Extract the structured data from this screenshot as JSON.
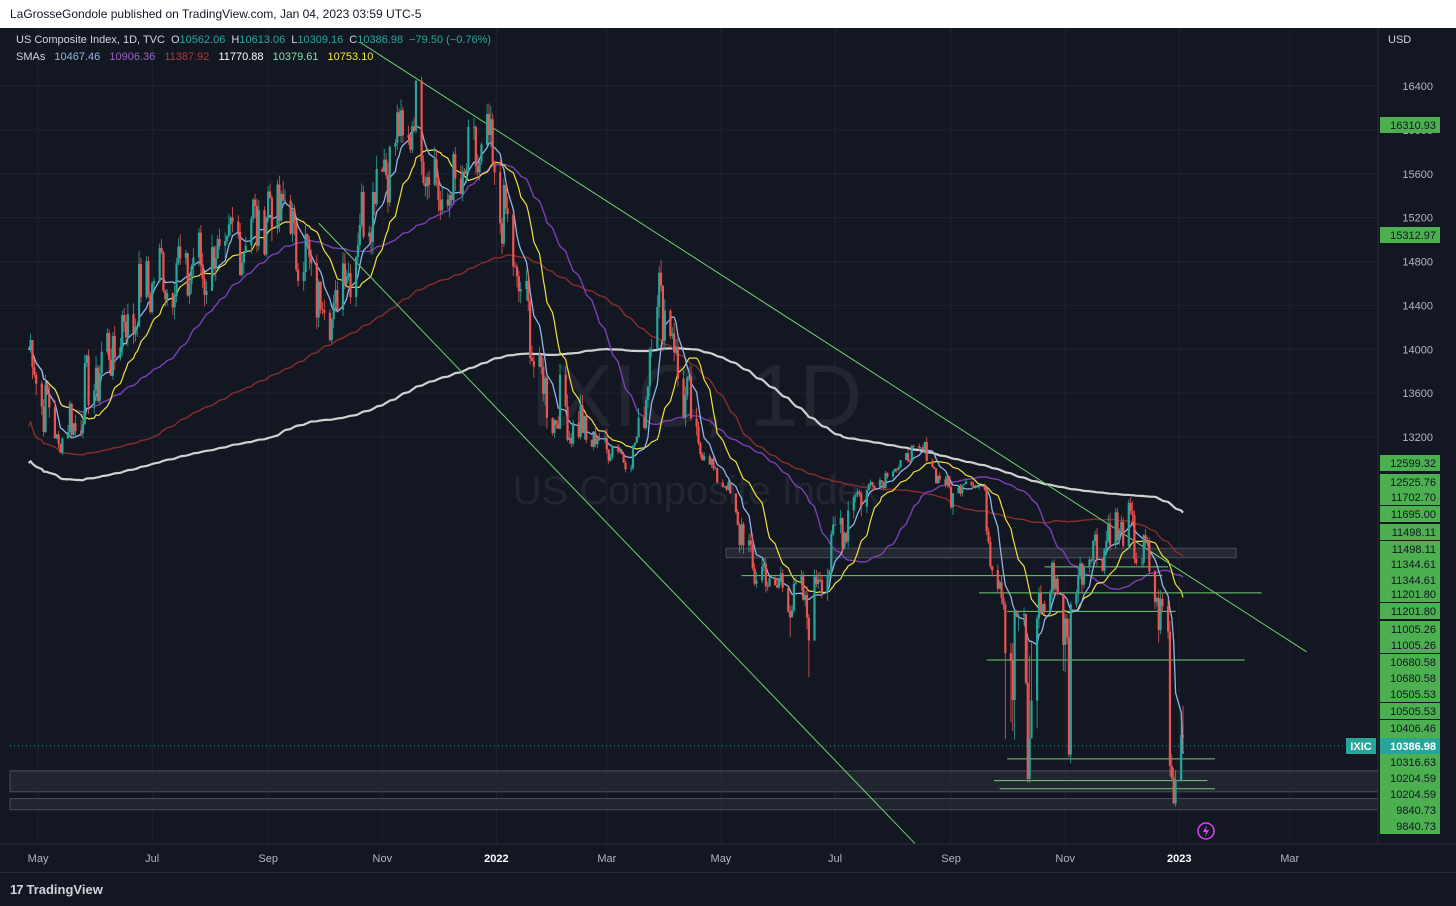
{
  "header": {
    "publisher": "LaGrosseGondole published on TradingView.com, Jan 04, 2023 03:59 UTC-5"
  },
  "legend": {
    "symbol_line": "US Composite Index, 1D, TVC",
    "open_label": "O",
    "open": "10562.06",
    "high_label": "H",
    "high": "10613.06",
    "low_label": "L",
    "low": "10309.16",
    "close_label": "C",
    "close": "10386.98",
    "change": "−79.50 (−0.76%)",
    "sma_label": "SMAs",
    "smas": [
      {
        "value": "10467.46",
        "color": "#8fb5e8"
      },
      {
        "value": "10906.36",
        "color": "#9c5fc4"
      },
      {
        "value": "11387.92",
        "color": "#a83d3d"
      },
      {
        "value": "11770.88",
        "color": "#ffffff"
      },
      {
        "value": "10379.61",
        "color": "#82e0aa"
      },
      {
        "value": "10753.10",
        "color": "#f5e642"
      }
    ]
  },
  "currency": "USD",
  "watermark": {
    "symbol": "IXIC, 1D",
    "name": "US Composite Index"
  },
  "footer": {
    "brand": "TradingView"
  },
  "colors": {
    "background": "#131722",
    "up_candle": "#26a69a",
    "down_candle": "#ef5350",
    "trendline": "#6fcf6f",
    "axis_label_green": "#4caf50",
    "price_tag": "#26a69a",
    "sma_white": "#d0d0d0",
    "sma_red": "#8b2c2c",
    "sma_purple": "#7b3fb5",
    "sma_yellow": "#f0e040",
    "sma_blue": "#8fb5e8"
  },
  "chart_data": {
    "type": "line",
    "title": "US Composite Index, 1D, TVC",
    "symbol": "IXIC",
    "x_ticks": [
      "May",
      "Jul",
      "Sep",
      "Nov",
      "2022",
      "Mar",
      "May",
      "Jul",
      "Sep",
      "Nov",
      "2023",
      "Mar"
    ],
    "y_ticks": [
      16400,
      16000,
      15600,
      15200,
      14800,
      14400,
      14000,
      13600,
      13200
    ],
    "ylim": [
      9750,
      16600
    ],
    "y_scale": "log",
    "close_price": "10386.98",
    "close_tag": "IXIC",
    "x": [
      "2021-04-26",
      "2021-05-12",
      "2021-06-01",
      "2021-07-01",
      "2021-08-02",
      "2021-09-07",
      "2021-10-04",
      "2021-11-01",
      "2021-11-19",
      "2021-12-03",
      "2021-12-27",
      "2022-01-27",
      "2022-02-24",
      "2022-03-14",
      "2022-03-29",
      "2022-05-11",
      "2022-05-20",
      "2022-06-16",
      "2022-07-08",
      "2022-08-16",
      "2022-09-01",
      "2022-09-12",
      "2022-09-30",
      "2022-10-13",
      "2022-10-25",
      "2022-11-03",
      "2022-11-10",
      "2022-12-01",
      "2022-12-13",
      "2022-12-28",
      "2023-01-03"
    ],
    "series": [
      {
        "values": [
          14000,
          13100,
          13750,
          14650,
          14780,
          15350,
          14300,
          15700,
          16100,
          15300,
          15850,
          13550,
          13100,
          12700,
          14600,
          11400,
          11000,
          10650,
          11600,
          12950,
          11800,
          12250,
          10600,
          10320,
          10950,
          10400,
          11150,
          11450,
          11200,
          10210,
          10386.98
        ]
      }
    ],
    "horizontal_levels": [
      "16310.93",
      "15312.97",
      "12599.32",
      "12525.76",
      "11702.70",
      "11695.00",
      "11498.11",
      "11498.11",
      "11344.61",
      "11344.61",
      "11201.80",
      "11201.80",
      "11005.26",
      "11005.26",
      "10680.58",
      "10680.58",
      "10505.53",
      "10505.53",
      "10406.46",
      "10316.63",
      "10316.63",
      "10204.59",
      "10204.59",
      "9840.73",
      "9840.73"
    ]
  }
}
